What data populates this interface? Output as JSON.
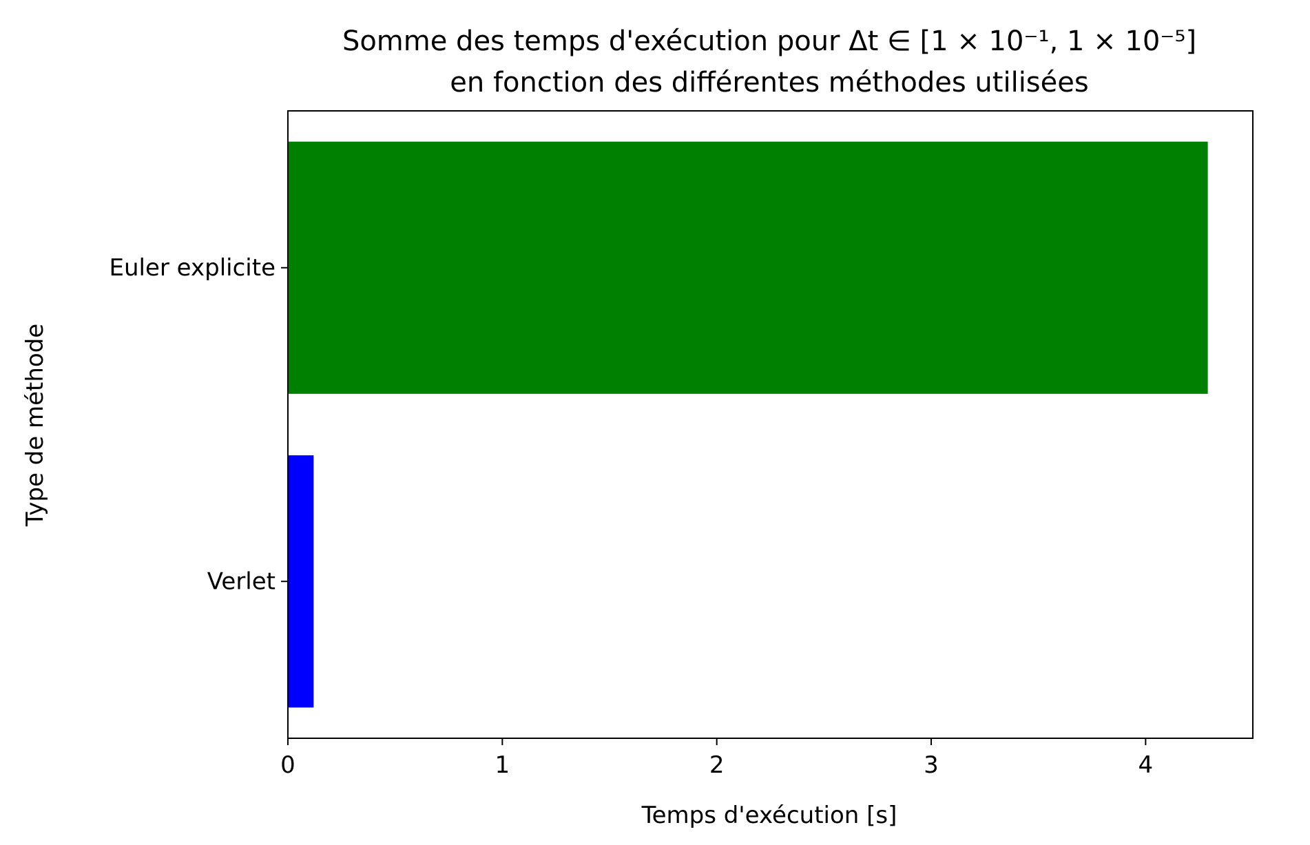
{
  "chart_data": {
    "type": "bar",
    "orientation": "horizontal",
    "title_line1": "Somme des temps d'exécution pour Δt ∈ [1 × 10⁻¹, 1 × 10⁻⁵]",
    "title_line2": "en fonction des différentes méthodes utilisées",
    "xlabel": "Temps d'exécution [s]",
    "ylabel": "Type de méthode",
    "categories": [
      "Euler explicite",
      "Verlet"
    ],
    "values": [
      4.29,
      0.12
    ],
    "colors": [
      "#008000",
      "#0000ff"
    ],
    "xlim": [
      0,
      4.5
    ],
    "xticks": [
      0,
      1,
      2,
      3,
      4
    ],
    "grid": false,
    "legend": "none"
  }
}
